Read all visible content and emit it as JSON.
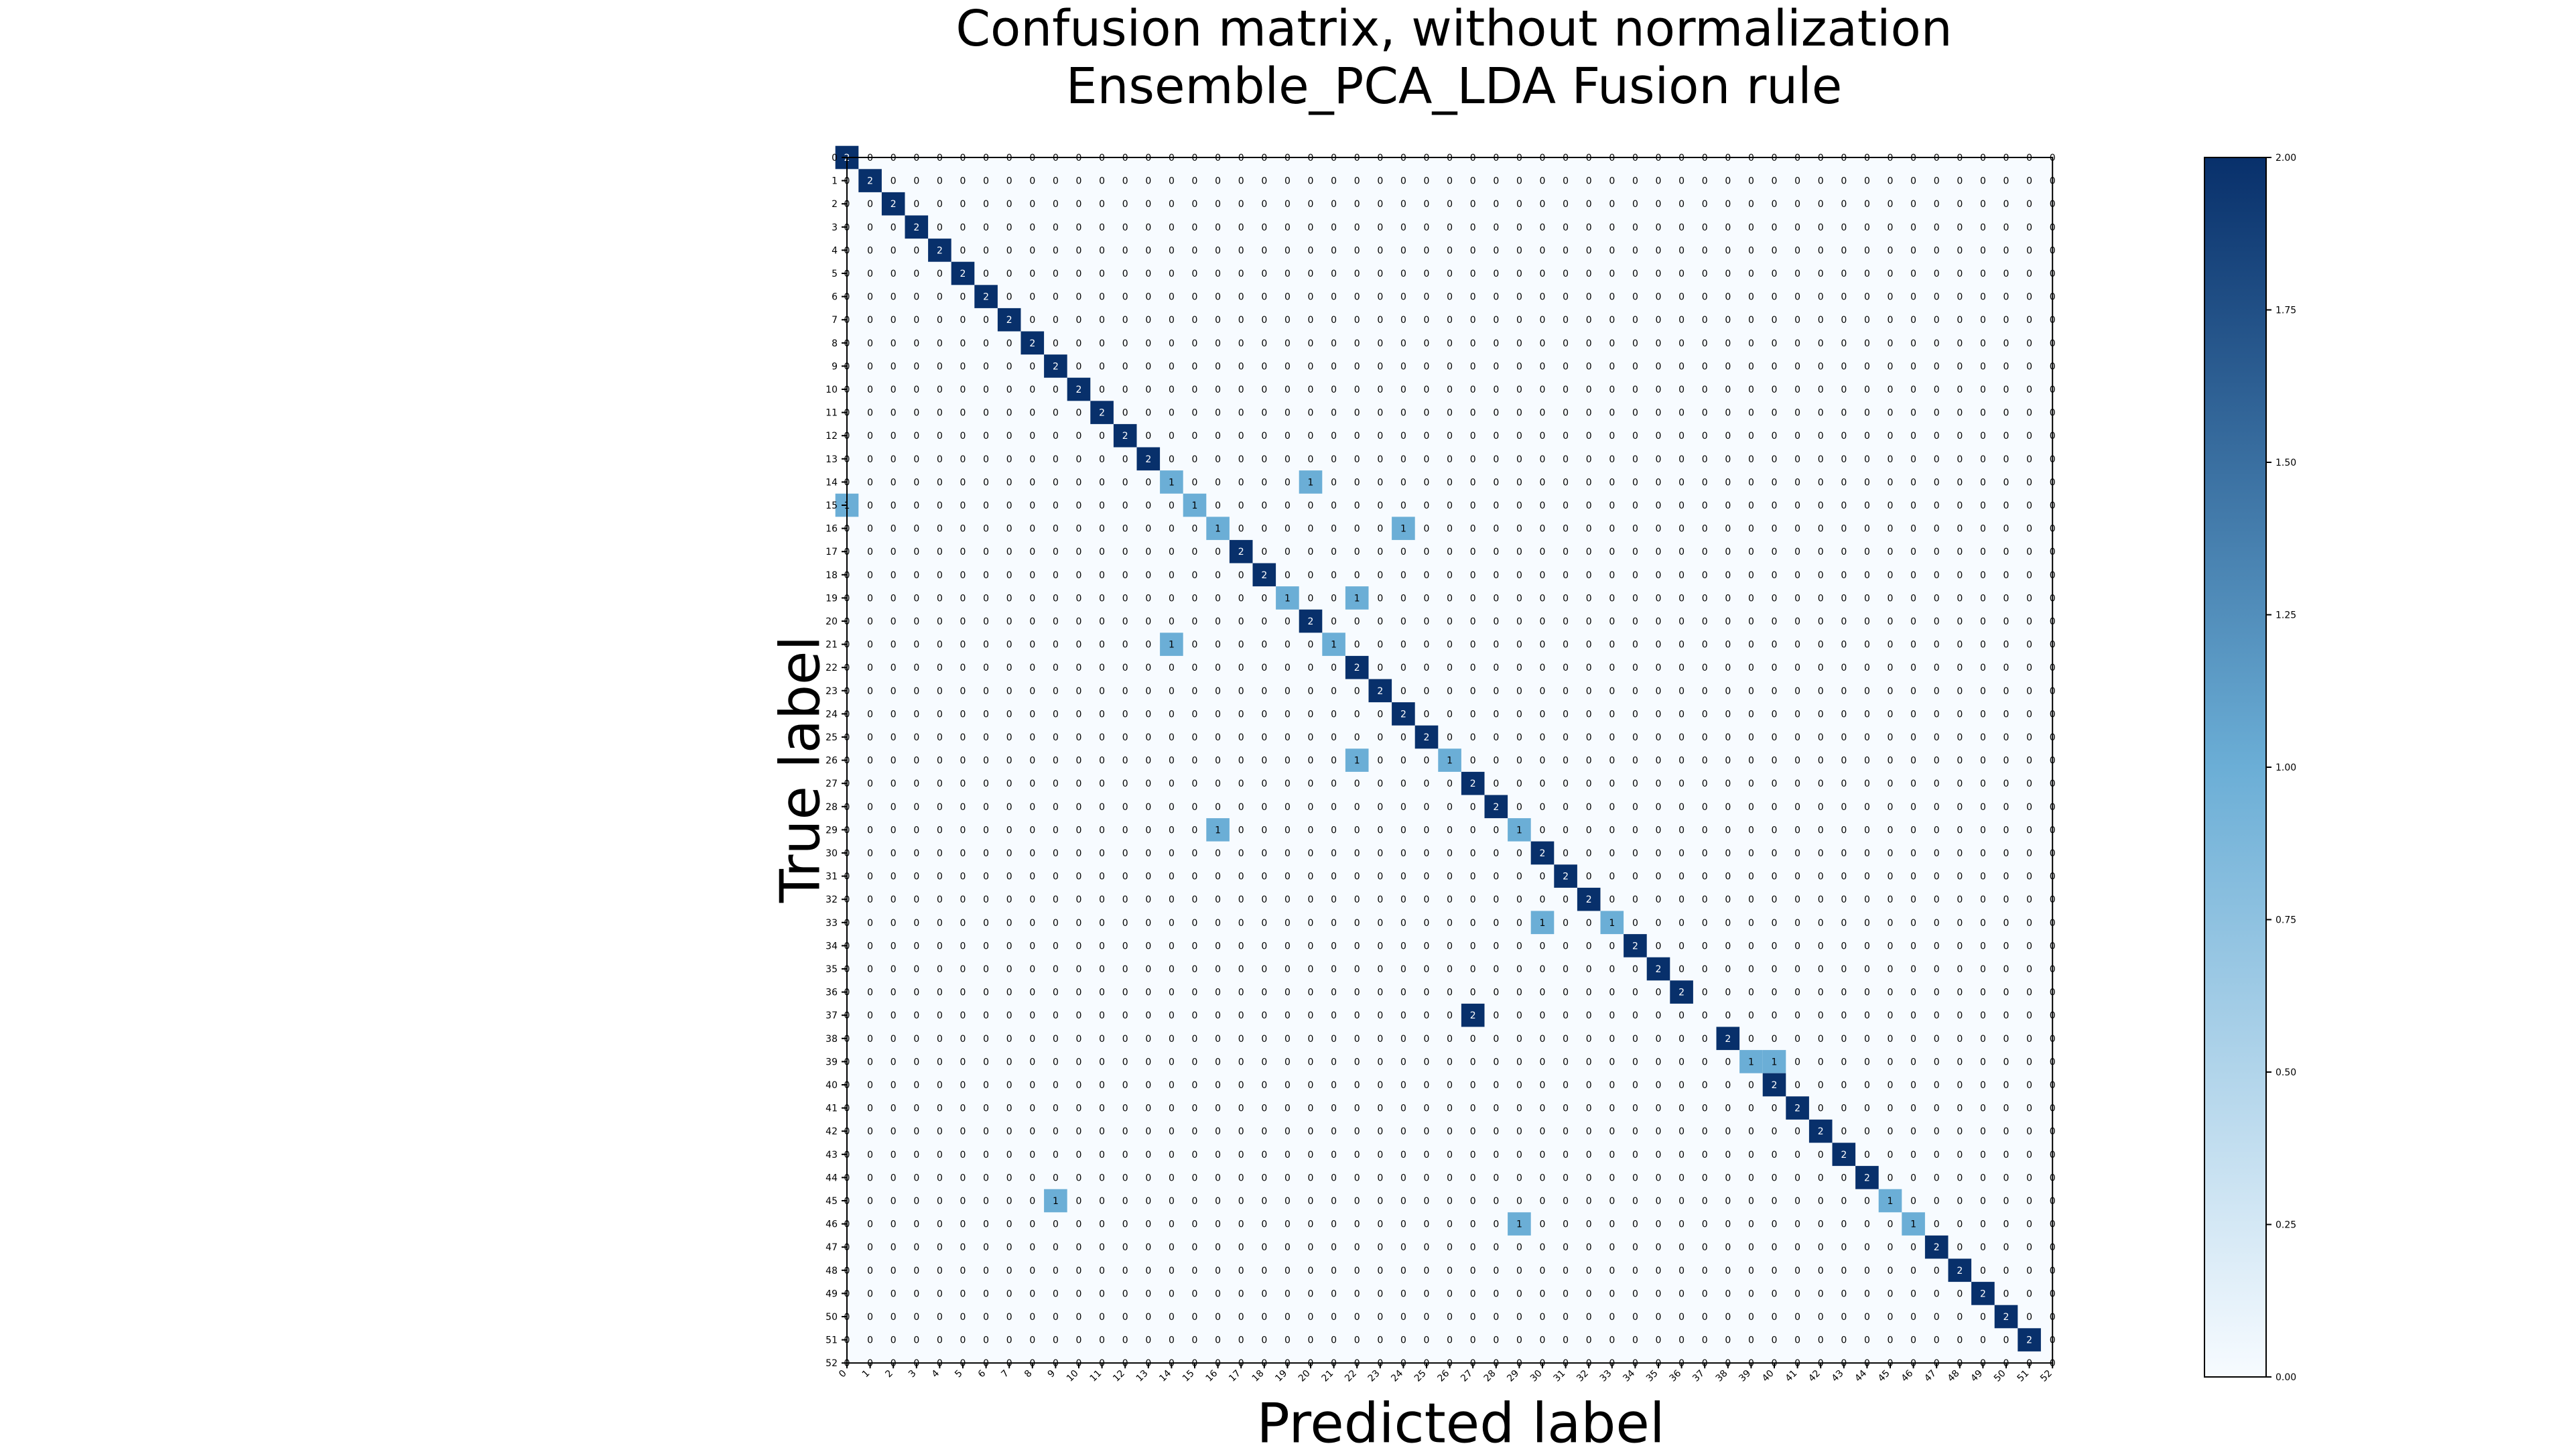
{
  "chart_data": {
    "type": "heatmap",
    "title": [
      "Confusion matrix, without normalization",
      "Ensemble_PCA_LDA Fusion rule"
    ],
    "xlabel": "Predicted label",
    "ylabel": "True label",
    "row_labels": [
      "0",
      "1",
      "2",
      "3",
      "4",
      "5",
      "6",
      "7",
      "8",
      "9",
      "10",
      "11",
      "12",
      "13",
      "14",
      "15",
      "16",
      "17",
      "18",
      "19",
      "20",
      "21",
      "22",
      "23",
      "24",
      "25",
      "26",
      "27",
      "28",
      "29",
      "30",
      "31",
      "32",
      "33",
      "34",
      "35",
      "36",
      "37",
      "38",
      "39",
      "40",
      "41",
      "42",
      "43",
      "44",
      "45",
      "46",
      "47",
      "48",
      "49",
      "50",
      "51",
      "52"
    ],
    "col_labels": [
      "0",
      "1",
      "2",
      "3",
      "4",
      "5",
      "6",
      "7",
      "8",
      "9",
      "10",
      "11",
      "12",
      "13",
      "14",
      "15",
      "16",
      "17",
      "18",
      "19",
      "20",
      "21",
      "22",
      "23",
      "24",
      "25",
      "26",
      "27",
      "28",
      "29",
      "30",
      "31",
      "32",
      "33",
      "34",
      "35",
      "36",
      "37",
      "38",
      "39",
      "40",
      "41",
      "42",
      "43",
      "44",
      "45",
      "46",
      "47",
      "48",
      "49",
      "50",
      "51",
      "52"
    ],
    "default_value": 0,
    "nonzero_cells": [
      {
        "row": 0,
        "col": 0,
        "value": 2
      },
      {
        "row": 1,
        "col": 1,
        "value": 2
      },
      {
        "row": 2,
        "col": 2,
        "value": 2
      },
      {
        "row": 3,
        "col": 3,
        "value": 2
      },
      {
        "row": 4,
        "col": 4,
        "value": 2
      },
      {
        "row": 5,
        "col": 5,
        "value": 2
      },
      {
        "row": 6,
        "col": 6,
        "value": 2
      },
      {
        "row": 7,
        "col": 7,
        "value": 2
      },
      {
        "row": 8,
        "col": 8,
        "value": 2
      },
      {
        "row": 9,
        "col": 9,
        "value": 2
      },
      {
        "row": 10,
        "col": 10,
        "value": 2
      },
      {
        "row": 11,
        "col": 11,
        "value": 2
      },
      {
        "row": 12,
        "col": 12,
        "value": 2
      },
      {
        "row": 13,
        "col": 13,
        "value": 2
      },
      {
        "row": 14,
        "col": 14,
        "value": 1
      },
      {
        "row": 14,
        "col": 20,
        "value": 1
      },
      {
        "row": 15,
        "col": 0,
        "value": 1
      },
      {
        "row": 15,
        "col": 15,
        "value": 1
      },
      {
        "row": 16,
        "col": 16,
        "value": 1
      },
      {
        "row": 16,
        "col": 24,
        "value": 1
      },
      {
        "row": 17,
        "col": 17,
        "value": 2
      },
      {
        "row": 18,
        "col": 18,
        "value": 2
      },
      {
        "row": 19,
        "col": 19,
        "value": 1
      },
      {
        "row": 19,
        "col": 22,
        "value": 1
      },
      {
        "row": 20,
        "col": 20,
        "value": 2
      },
      {
        "row": 21,
        "col": 14,
        "value": 1
      },
      {
        "row": 21,
        "col": 21,
        "value": 1
      },
      {
        "row": 22,
        "col": 22,
        "value": 2
      },
      {
        "row": 23,
        "col": 23,
        "value": 2
      },
      {
        "row": 24,
        "col": 24,
        "value": 2
      },
      {
        "row": 25,
        "col": 25,
        "value": 2
      },
      {
        "row": 26,
        "col": 22,
        "value": 1
      },
      {
        "row": 26,
        "col": 26,
        "value": 1
      },
      {
        "row": 27,
        "col": 27,
        "value": 2
      },
      {
        "row": 28,
        "col": 28,
        "value": 2
      },
      {
        "row": 29,
        "col": 16,
        "value": 1
      },
      {
        "row": 29,
        "col": 29,
        "value": 1
      },
      {
        "row": 30,
        "col": 30,
        "value": 2
      },
      {
        "row": 31,
        "col": 31,
        "value": 2
      },
      {
        "row": 32,
        "col": 32,
        "value": 2
      },
      {
        "row": 33,
        "col": 30,
        "value": 1
      },
      {
        "row": 33,
        "col": 33,
        "value": 1
      },
      {
        "row": 34,
        "col": 34,
        "value": 2
      },
      {
        "row": 35,
        "col": 35,
        "value": 2
      },
      {
        "row": 36,
        "col": 36,
        "value": 2
      },
      {
        "row": 37,
        "col": 27,
        "value": 2
      },
      {
        "row": 38,
        "col": 38,
        "value": 2
      },
      {
        "row": 39,
        "col": 39,
        "value": 1
      },
      {
        "row": 39,
        "col": 40,
        "value": 1
      },
      {
        "row": 40,
        "col": 40,
        "value": 2
      },
      {
        "row": 41,
        "col": 41,
        "value": 2
      },
      {
        "row": 42,
        "col": 42,
        "value": 2
      },
      {
        "row": 43,
        "col": 43,
        "value": 2
      },
      {
        "row": 44,
        "col": 44,
        "value": 2
      },
      {
        "row": 45,
        "col": 9,
        "value": 1
      },
      {
        "row": 45,
        "col": 45,
        "value": 1
      },
      {
        "row": 46,
        "col": 29,
        "value": 1
      },
      {
        "row": 46,
        "col": 46,
        "value": 1
      },
      {
        "row": 47,
        "col": 47,
        "value": 2
      },
      {
        "row": 48,
        "col": 48,
        "value": 2
      },
      {
        "row": 49,
        "col": 49,
        "value": 2
      },
      {
        "row": 50,
        "col": 50,
        "value": 2
      },
      {
        "row": 51,
        "col": 51,
        "value": 2
      }
    ],
    "colorbar": {
      "range": [
        0,
        2
      ],
      "ticks": [
        "0.00",
        "0.25",
        "0.50",
        "0.75",
        "1.00",
        "1.25",
        "1.50",
        "1.75",
        "2.00"
      ],
      "colormap": "Blues",
      "colors": {
        "low": "#f7fbff",
        "mid": "#6baed6",
        "high": "#08306b"
      }
    }
  }
}
